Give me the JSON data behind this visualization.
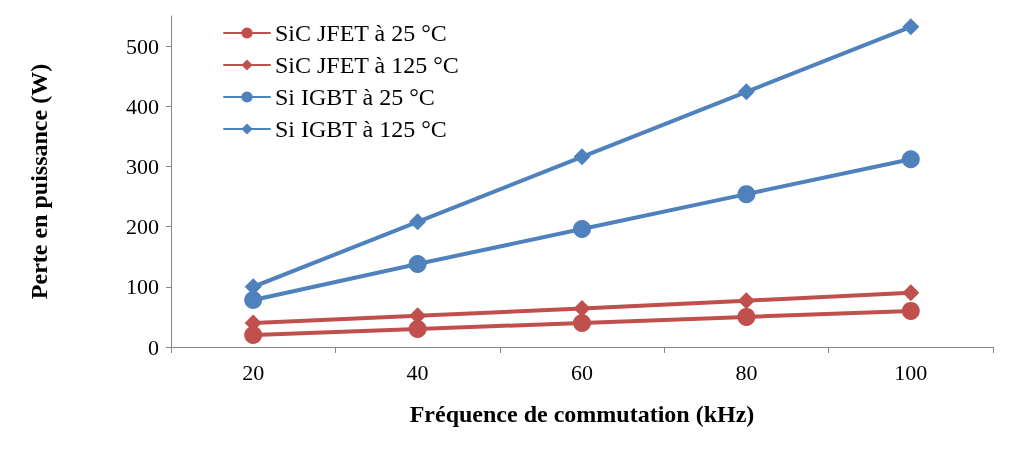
{
  "chart_data": {
    "type": "line",
    "xlabel": "Fréquence de commutation (kHz)",
    "ylabel": "Perte en puissance (W)",
    "categories": [
      "20",
      "40",
      "60",
      "80",
      "100"
    ],
    "series": [
      {
        "name": "SiC JFET à 25 °C",
        "color": "#c0504d",
        "marker": "circle",
        "values": [
          20,
          30,
          40,
          50,
          60
        ]
      },
      {
        "name": "SiC JFET à 125 °C",
        "color": "#c0504d",
        "marker": "diamond",
        "values": [
          40,
          52,
          64,
          77,
          90
        ]
      },
      {
        "name": "Si IGBT à 25 °C",
        "color": "#4f81bd",
        "marker": "circle",
        "values": [
          78,
          138,
          196,
          254,
          312
        ]
      },
      {
        "name": "Si IGBT à 125 °C",
        "color": "#4f81bd",
        "marker": "diamond",
        "values": [
          100,
          208,
          316,
          424,
          532
        ]
      }
    ],
    "ylim": [
      0,
      550
    ],
    "yticks": [
      0,
      100,
      200,
      300,
      400,
      500
    ],
    "grid": false,
    "legend": "top left"
  }
}
